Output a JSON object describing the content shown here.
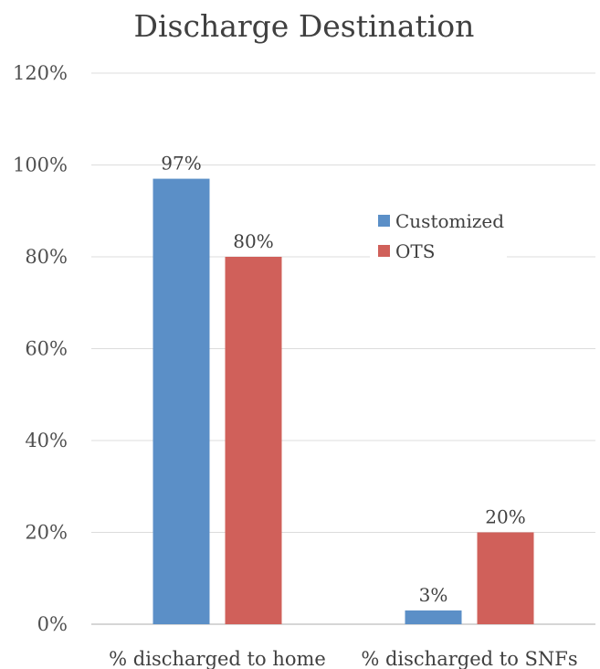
{
  "chart_data": {
    "type": "bar",
    "title": "Discharge Destination",
    "categories": [
      "% discharged to home",
      "% discharged to SNFs"
    ],
    "series": [
      {
        "name": "Customized",
        "values": [
          97,
          3
        ],
        "labels": [
          "97%",
          "3%"
        ],
        "color": "#5b8fc7"
      },
      {
        "name": "OTS",
        "values": [
          80,
          20
        ],
        "labels": [
          "80%",
          "20%"
        ],
        "color": "#d0605a"
      }
    ],
    "ylim": [
      0,
      120
    ],
    "yticks": [
      0,
      20,
      40,
      60,
      80,
      100,
      120
    ],
    "ytick_labels": [
      "0%",
      "20%",
      "40%",
      "60%",
      "80%",
      "100%",
      "120%"
    ],
    "xlabel": "",
    "ylabel": "",
    "grid": true,
    "legend_position": "right"
  }
}
